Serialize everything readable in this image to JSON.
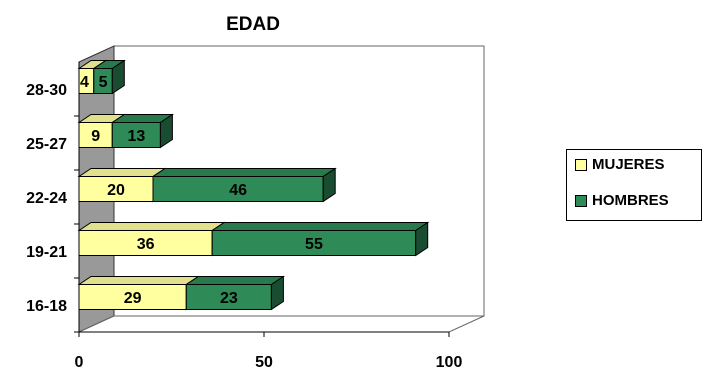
{
  "chart_data": {
    "type": "bar",
    "orientation": "horizontal",
    "stacked": true,
    "three_d": true,
    "title": "EDAD",
    "categories": [
      "16-18",
      "19-21",
      "22-24",
      "25-27",
      "28-30"
    ],
    "series": [
      {
        "name": "MUJERES",
        "values": [
          29,
          36,
          20,
          9,
          4
        ],
        "color": "#FFFFA0"
      },
      {
        "name": "HOMBRES",
        "values": [
          23,
          55,
          46,
          13,
          5
        ],
        "color": "#2E8B57"
      }
    ],
    "xlim": [
      0,
      100
    ],
    "x_ticks": [
      "0",
      "50",
      "100"
    ],
    "legend_position": "right",
    "grid": false,
    "wall_color": "#999999"
  }
}
